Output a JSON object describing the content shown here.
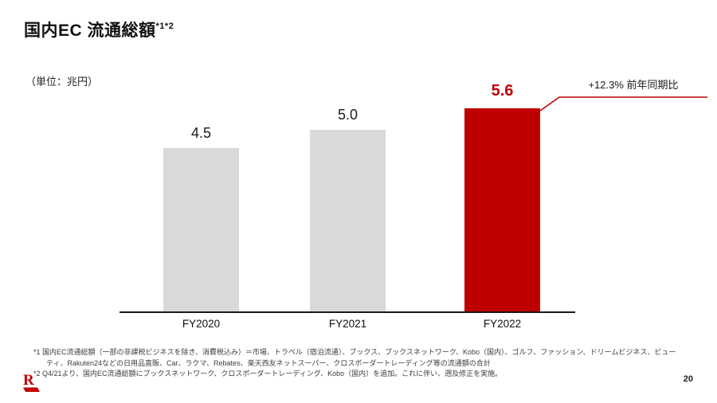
{
  "slide": {
    "title": "国内EC 流通総額",
    "title_note": "*1*2",
    "unit_label": "（単位：兆円）",
    "page_number": "20"
  },
  "chart_data": {
    "type": "bar",
    "title": "国内EC 流通総額",
    "unit": "兆円",
    "categories": [
      "FY2020",
      "FY2021",
      "FY2022"
    ],
    "values": [
      4.5,
      5.0,
      5.6
    ],
    "value_labels": [
      "4.5",
      "5.0",
      "5.6"
    ],
    "bar_colors": [
      "#D9D9D9",
      "#D9D9D9",
      "#BF0000"
    ],
    "value_label_colors": [
      "#1A1A1A",
      "#1A1A1A",
      "#BF0000"
    ],
    "highlight_index": 2,
    "ylim": [
      0,
      6
    ],
    "grid": false,
    "legend": false,
    "axis_color": "#1A1A1A",
    "annotation": {
      "label": "+12.3% 前年同期比",
      "target_category": "FY2022",
      "line_color": "#BF0000"
    }
  },
  "footnotes": [
    "*1 国内EC流通総額（一部の非課税ビジネスを除き、消費税込み）＝市場、トラベル（宿泊流通）、ブックス、ブックスネットワーク、Kobo（国内）、ゴルフ、ファッション、ドリームビジネス、ビューティ、Rakuten24などの日用品直販、Car、ラクマ、Rebates、楽天西友ネットスーパー、クロスボーダートレーディング等の流通額の合計",
    "*2 Q4/21より、国内EC流通総額にブックスネットワーク、クロスボーダートレーディング、Kobo（国内）を追加。これに伴い、遡及修正を実施。"
  ],
  "logo": {
    "name": "rakuten-logo",
    "color": "#BF0000"
  }
}
